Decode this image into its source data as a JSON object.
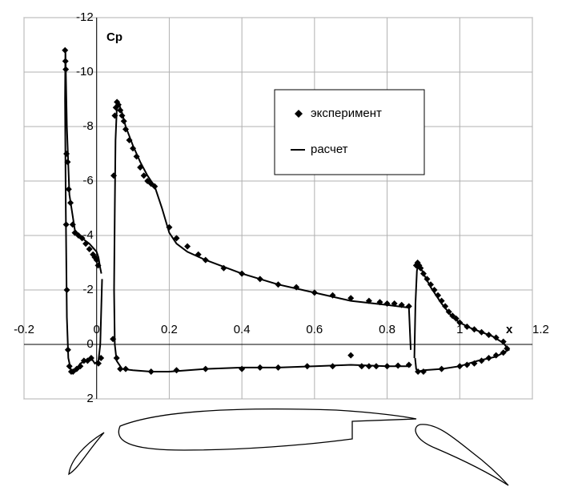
{
  "chart_data": {
    "type": "scatter",
    "x_label": "x",
    "y_label": "Cp",
    "xlim": [
      -0.2,
      1.2
    ],
    "xticks": [
      -0.2,
      0,
      0.2,
      0.4,
      0.6,
      0.8,
      1,
      1.2
    ],
    "ylim": [
      2,
      -12
    ],
    "yticks": [
      -12,
      -10,
      -8,
      -6,
      -4,
      -2,
      0,
      2
    ],
    "grid": true,
    "legend": "upper right",
    "series": [
      {
        "name": "эксперимент",
        "color": "#000000",
        "marker": "diamond",
        "x": [
          -0.087,
          -0.086,
          -0.085,
          -0.083,
          -0.08,
          -0.077,
          -0.072,
          -0.066,
          -0.06,
          -0.05,
          -0.04,
          -0.03,
          -0.02,
          -0.01,
          -0.005,
          0.0,
          0.004,
          -0.084,
          -0.082,
          -0.079,
          -0.075,
          -0.07,
          -0.065,
          -0.055,
          -0.045,
          -0.035,
          -0.025,
          -0.015,
          0.005,
          0.012,
          0.045,
          0.047,
          0.05,
          0.053,
          0.056,
          0.06,
          0.065,
          0.07,
          0.075,
          0.08,
          0.09,
          0.1,
          0.11,
          0.12,
          0.13,
          0.14,
          0.15,
          0.16,
          0.2,
          0.22,
          0.25,
          0.28,
          0.3,
          0.35,
          0.4,
          0.45,
          0.5,
          0.55,
          0.6,
          0.65,
          0.7,
          0.75,
          0.78,
          0.8,
          0.82,
          0.84,
          0.86,
          0.055,
          0.065,
          0.08,
          0.15,
          0.22,
          0.3,
          0.4,
          0.45,
          0.5,
          0.58,
          0.65,
          0.7,
          0.73,
          0.75,
          0.77,
          0.8,
          0.83,
          0.86,
          0.88,
          0.884,
          0.888,
          0.892,
          0.9,
          0.91,
          0.92,
          0.93,
          0.94,
          0.95,
          0.96,
          0.97,
          0.98,
          0.99,
          1.0,
          1.02,
          1.04,
          1.06,
          1.08,
          1.1,
          1.12,
          1.13,
          0.885,
          0.9,
          0.95,
          1.0,
          1.02,
          1.04,
          1.06,
          1.08,
          1.1,
          1.12
        ],
        "values": [
          -10.8,
          -10.4,
          -10.1,
          -7.0,
          -6.7,
          -5.7,
          -5.2,
          -4.4,
          -4.1,
          -4.0,
          -3.9,
          -3.7,
          -3.5,
          -3.3,
          -3.2,
          -3.1,
          -2.9,
          -4.4,
          -2.0,
          0.2,
          0.8,
          1.0,
          1.0,
          0.9,
          0.8,
          0.6,
          0.6,
          0.5,
          0.7,
          0.5,
          -0.2,
          -6.2,
          -8.4,
          -8.7,
          -8.9,
          -8.8,
          -8.6,
          -8.4,
          -8.2,
          -7.9,
          -7.5,
          -7.2,
          -6.9,
          -6.5,
          -6.2,
          -6.0,
          -5.9,
          -5.8,
          -4.3,
          -3.9,
          -3.6,
          -3.3,
          -3.1,
          -2.8,
          -2.6,
          -2.4,
          -2.2,
          -2.1,
          -1.9,
          -1.8,
          -1.7,
          -1.6,
          -1.55,
          -1.5,
          -1.5,
          -1.45,
          -1.4,
          0.5,
          0.9,
          0.9,
          1.0,
          0.95,
          0.9,
          0.9,
          0.85,
          0.85,
          0.8,
          0.8,
          0.4,
          0.8,
          0.8,
          0.8,
          0.8,
          0.78,
          0.75,
          -2.9,
          -3.0,
          -2.9,
          -2.8,
          -2.6,
          -2.4,
          -2.2,
          -2.0,
          -1.8,
          -1.6,
          -1.4,
          -1.2,
          -1.05,
          -0.95,
          -0.8,
          -0.65,
          -0.55,
          -0.45,
          -0.35,
          -0.25,
          -0.1,
          0.15,
          1.0,
          1.0,
          0.9,
          0.8,
          0.75,
          0.7,
          0.6,
          0.5,
          0.4,
          0.3
        ]
      },
      {
        "name": "расчет",
        "color": "#000000",
        "type": "line",
        "x": [
          0.013,
          0.01,
          0.005,
          0.0,
          -0.02,
          -0.04,
          -0.06,
          -0.075,
          -0.082,
          -0.086,
          -0.087,
          -0.085,
          -0.082,
          -0.078,
          -0.07,
          -0.06,
          -0.045,
          -0.03,
          -0.015,
          -0.005,
          0.005,
          0.01,
          0.015,
          null,
          0.865,
          0.8,
          0.7,
          0.6,
          0.5,
          0.4,
          0.3,
          0.2,
          0.15,
          0.1,
          0.07,
          0.055,
          0.05,
          0.048,
          0.05,
          0.052,
          0.056,
          0.06,
          0.07,
          0.08,
          0.1,
          0.12,
          0.14,
          0.16,
          0.18,
          0.2,
          0.22,
          0.25,
          0.3,
          0.4,
          0.5,
          0.6,
          0.7,
          0.8,
          0.86,
          0.865,
          null,
          0.875,
          0.878,
          0.882,
          0.886,
          0.9,
          0.92,
          0.95,
          0.98,
          1.0,
          1.03,
          1.06,
          1.09,
          1.12,
          1.135,
          1.12,
          1.1,
          1.05,
          1.0,
          0.95,
          0.9,
          0.885,
          0.88,
          0.877
        ],
        "values": [
          -2.6,
          -2.8,
          -3.2,
          -3.4,
          -3.7,
          -3.9,
          -4.2,
          -5.5,
          -8.0,
          -10.8,
          -9.0,
          -5.0,
          -1.0,
          0.5,
          1.0,
          1.0,
          0.7,
          0.6,
          0.5,
          0.7,
          0.6,
          0.0,
          -2.4,
          null,
          0.8,
          0.8,
          0.75,
          0.8,
          0.85,
          0.85,
          0.9,
          1.0,
          1.0,
          0.95,
          0.9,
          0.6,
          0.0,
          -2.0,
          -5.0,
          -7.5,
          -8.8,
          -8.9,
          -8.5,
          -8.0,
          -7.3,
          -6.7,
          -6.2,
          -5.8,
          -5.0,
          -4.1,
          -3.7,
          -3.4,
          -3.1,
          -2.6,
          -2.2,
          -1.9,
          -1.6,
          -1.45,
          -1.35,
          0.2,
          null,
          0.5,
          -1.5,
          -2.7,
          -3.0,
          -2.6,
          -2.1,
          -1.5,
          -1.0,
          -0.8,
          -0.6,
          -0.45,
          -0.3,
          -0.05,
          0.2,
          0.3,
          0.45,
          0.6,
          0.8,
          0.9,
          0.95,
          1.0,
          0.9,
          0.5
        ]
      }
    ]
  }
}
